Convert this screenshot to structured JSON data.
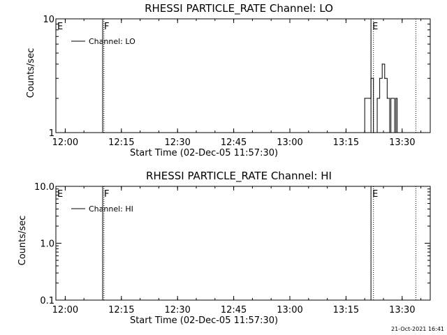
{
  "footer_timestamp": "21-Oct-2021 16:41",
  "chart_data": [
    {
      "type": "line",
      "title": "RHESSI PARTICLE_RATE Channel: LO",
      "xlabel": "Start Time (02-Dec-05 11:57:30)",
      "ylabel": "Counts/sec",
      "yscale": "log",
      "xlim": [
        "11:57:30",
        "13:37:30"
      ],
      "ylim": [
        1,
        10
      ],
      "x_ticks": [
        "12:00",
        "12:15",
        "12:30",
        "12:45",
        "13:00",
        "13:15",
        "13:30"
      ],
      "y_ticks": [
        "1",
        "10"
      ],
      "legend": {
        "label": "Channel: LO",
        "placement": "top-left"
      },
      "event_lines": [
        {
          "label": "E",
          "time": "11:57:30",
          "style": "solid"
        },
        {
          "label": "F",
          "time": "12:10:00",
          "style": "solid"
        },
        {
          "label": "",
          "time": "12:10:20",
          "style": "dotted"
        },
        {
          "label": "E",
          "time": "13:21:40",
          "style": "solid"
        },
        {
          "label": "",
          "time": "13:22:20",
          "style": "dotted"
        },
        {
          "label": "",
          "time": "13:33:40",
          "style": "dotted"
        }
      ],
      "series": [
        {
          "name": "Channel: LO",
          "points": [
            [
              "13:19:40",
              1
            ],
            [
              "13:20:00",
              2
            ],
            [
              "13:21:20",
              2
            ],
            [
              "13:21:40",
              3
            ],
            [
              "13:22:20",
              1
            ],
            [
              "13:23:20",
              2
            ],
            [
              "13:24:00",
              3
            ],
            [
              "13:24:40",
              4
            ],
            [
              "13:25:20",
              3
            ],
            [
              "13:26:00",
              2
            ],
            [
              "13:26:40",
              1
            ],
            [
              "13:27:00",
              2
            ],
            [
              "13:28:00",
              1
            ],
            [
              "13:28:20",
              2
            ],
            [
              "13:28:40",
              1
            ]
          ]
        }
      ]
    },
    {
      "type": "line",
      "title": "RHESSI PARTICLE_RATE Channel: HI",
      "xlabel": "Start Time (02-Dec-05 11:57:30)",
      "ylabel": "Counts/sec",
      "yscale": "log",
      "xlim": [
        "11:57:30",
        "13:37:30"
      ],
      "ylim": [
        0.1,
        10
      ],
      "x_ticks": [
        "12:00",
        "12:15",
        "12:30",
        "12:45",
        "13:00",
        "13:15",
        "13:30"
      ],
      "y_ticks": [
        "0.1",
        "1.0",
        "10.0"
      ],
      "legend": {
        "label": "Channel: HI",
        "placement": "top-left"
      },
      "event_lines": [
        {
          "label": "E",
          "time": "11:57:30",
          "style": "solid"
        },
        {
          "label": "F",
          "time": "12:10:00",
          "style": "solid"
        },
        {
          "label": "",
          "time": "12:10:20",
          "style": "dotted"
        },
        {
          "label": "E",
          "time": "13:21:40",
          "style": "solid"
        },
        {
          "label": "",
          "time": "13:22:20",
          "style": "dotted"
        },
        {
          "label": "",
          "time": "13:33:40",
          "style": "dotted"
        }
      ],
      "series": [
        {
          "name": "Channel: HI",
          "points": []
        }
      ]
    }
  ]
}
